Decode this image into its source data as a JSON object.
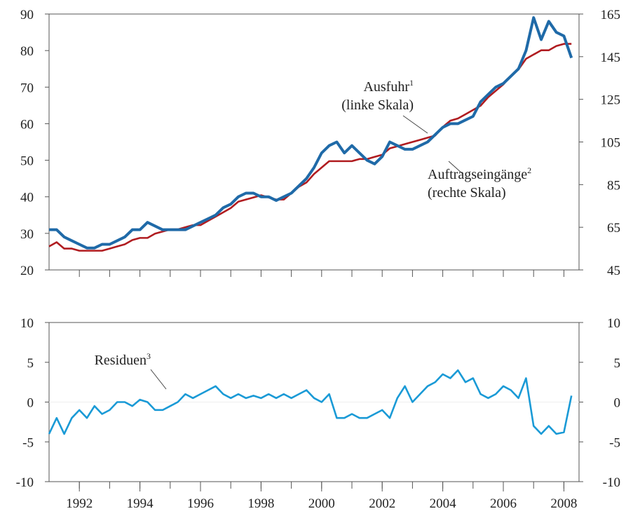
{
  "chart_data": [
    {
      "type": "line",
      "x": [
        1991,
        1991.25,
        1991.5,
        1991.75,
        1992,
        1992.25,
        1992.5,
        1992.75,
        1993,
        1993.25,
        1993.5,
        1993.75,
        1994,
        1994.25,
        1994.5,
        1994.75,
        1995,
        1995.25,
        1995.5,
        1995.75,
        1996,
        1996.25,
        1996.5,
        1996.75,
        1997,
        1997.25,
        1997.5,
        1997.75,
        1998,
        1998.25,
        1998.5,
        1998.75,
        1999,
        1999.25,
        1999.5,
        1999.75,
        2000,
        2000.25,
        2000.5,
        2000.75,
        2001,
        2001.25,
        2001.5,
        2001.75,
        2002,
        2002.25,
        2002.5,
        2002.75,
        2003,
        2003.25,
        2003.5,
        2003.75,
        2004,
        2004.25,
        2004.5,
        2004.75,
        2005,
        2005.25,
        2005.5,
        2005.75,
        2006,
        2006.25,
        2006.5,
        2006.75,
        2007,
        2007.25,
        2007.5,
        2007.75,
        2008,
        2008.25
      ],
      "series": [
        {
          "name": "Ausfuhr",
          "footnote": "1",
          "note": "(linke Skala)",
          "color": "#1f6aa8",
          "axis": "y",
          "values": [
            31,
            31,
            29,
            28,
            27,
            26,
            26,
            27,
            27,
            28,
            29,
            31,
            31,
            33,
            32,
            31,
            31,
            31,
            31,
            32,
            33,
            34,
            35,
            37,
            38,
            40,
            41,
            41,
            40,
            40,
            39,
            40,
            41,
            43,
            45,
            48,
            52,
            54,
            55,
            52,
            54,
            52,
            50,
            49,
            51,
            55,
            54,
            53,
            53,
            54,
            55,
            57,
            59,
            60,
            60,
            61,
            62,
            66,
            68,
            70,
            71,
            73,
            75,
            80,
            89,
            83,
            88,
            85,
            84,
            78
          ]
        },
        {
          "name": "Auftragseingänge",
          "footnote": "2",
          "note": "(rechte Skala)",
          "color": "#b01c20",
          "axis": "y2",
          "values": [
            56,
            58,
            55,
            55,
            54,
            54,
            54,
            54,
            55,
            56,
            57,
            59,
            60,
            60,
            62,
            63,
            64,
            64,
            65,
            66,
            66,
            68,
            70,
            72,
            74,
            77,
            78,
            79,
            80,
            79,
            78,
            78,
            81,
            84,
            86,
            90,
            93,
            96,
            96,
            96,
            96,
            97,
            97,
            98,
            99,
            102,
            103,
            104,
            105,
            106,
            107,
            108,
            112,
            115,
            116,
            118,
            120,
            122,
            126,
            129,
            132,
            136,
            139,
            144,
            146,
            148,
            148,
            150,
            151,
            151
          ]
        }
      ],
      "xlim": [
        1991,
        2008.5
      ],
      "xticks_minor": [
        1992,
        1993,
        1994,
        1995,
        1996,
        1997,
        1998,
        1999,
        2000,
        2001,
        2002,
        2003,
        2004,
        2005,
        2006,
        2007,
        2008
      ],
      "ylim": [
        20,
        90
      ],
      "yticks": [
        20,
        30,
        40,
        50,
        60,
        70,
        80,
        90
      ],
      "y2lim": [
        45,
        165
      ],
      "y2ticks": [
        45,
        65,
        85,
        105,
        125,
        145,
        165
      ]
    },
    {
      "type": "line",
      "x": [
        1991,
        1991.25,
        1991.5,
        1991.75,
        1992,
        1992.25,
        1992.5,
        1992.75,
        1993,
        1993.25,
        1993.5,
        1993.75,
        1994,
        1994.25,
        1994.5,
        1994.75,
        1995,
        1995.25,
        1995.5,
        1995.75,
        1996,
        1996.25,
        1996.5,
        1996.75,
        1997,
        1997.25,
        1997.5,
        1997.75,
        1998,
        1998.25,
        1998.5,
        1998.75,
        1999,
        1999.25,
        1999.5,
        1999.75,
        2000,
        2000.25,
        2000.5,
        2000.75,
        2001,
        2001.25,
        2001.5,
        2001.75,
        2002,
        2002.25,
        2002.5,
        2002.75,
        2003,
        2003.25,
        2003.5,
        2003.75,
        2004,
        2004.25,
        2004.5,
        2004.75,
        2005,
        2005.25,
        2005.5,
        2005.75,
        2006,
        2006.25,
        2006.5,
        2006.75,
        2007,
        2007.25,
        2007.5,
        2007.75,
        2008,
        2008.25
      ],
      "series": [
        {
          "name": "Residuen",
          "footnote": "3",
          "color": "#1a9ad6",
          "axis": "y",
          "values": [
            -4,
            -2,
            -4,
            -2,
            -1,
            -2,
            -0.5,
            -1.5,
            -1,
            0,
            0,
            -0.5,
            0.3,
            0,
            -1,
            -1,
            -0.5,
            0,
            1,
            0.5,
            1,
            1.5,
            2,
            1,
            0.5,
            1,
            0.5,
            0.8,
            0.5,
            1,
            0.5,
            1,
            0.5,
            1,
            1.5,
            0.5,
            0,
            1,
            -2,
            -2,
            -1.5,
            -2,
            -2,
            -1.5,
            -1,
            -2,
            0.5,
            2,
            0,
            1,
            2,
            2.5,
            3.5,
            3,
            4,
            2.5,
            3,
            1,
            0.5,
            1,
            2,
            1.5,
            0.5,
            3,
            -3,
            -4,
            -3,
            -4,
            -3.8,
            0.8
          ]
        }
      ],
      "xlim": [
        1991,
        2008.5
      ],
      "xticks": [
        1992,
        1994,
        1996,
        1998,
        2000,
        2002,
        2004,
        2006,
        2008
      ],
      "xticks_minor": [
        1992,
        1993,
        1994,
        1995,
        1996,
        1997,
        1998,
        1999,
        2000,
        2001,
        2002,
        2003,
        2004,
        2005,
        2006,
        2007,
        2008
      ],
      "ylim": [
        -10,
        10
      ],
      "yticks": [
        -10,
        -5,
        0,
        5,
        10
      ],
      "y2lim": [
        -10,
        10
      ],
      "y2ticks": [
        -10,
        -5,
        0,
        5,
        10
      ]
    }
  ]
}
